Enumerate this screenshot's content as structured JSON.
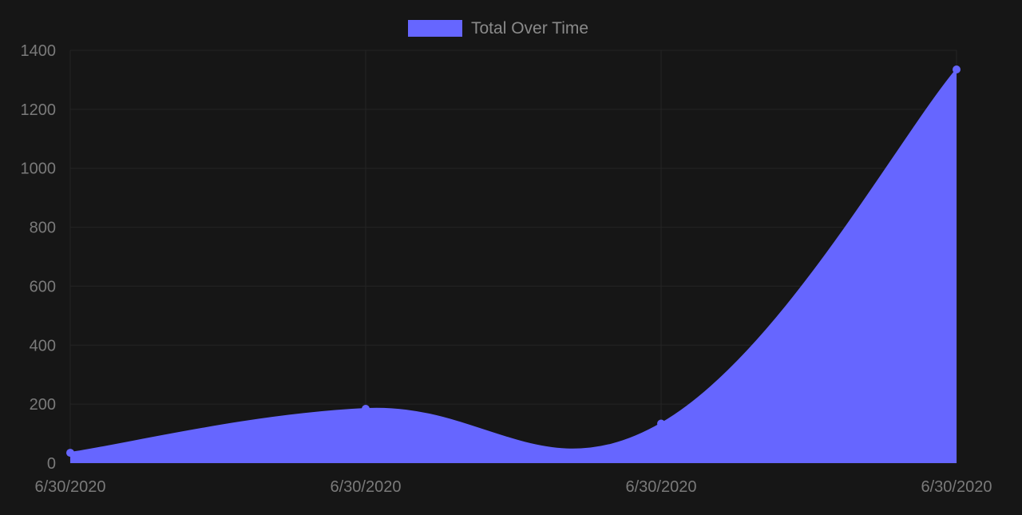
{
  "colors": {
    "background": "#161616",
    "series_fill": "#6666ff",
    "grid": "#242424",
    "tick_text": "#7a7a7a",
    "legend_text": "#8a8a8a"
  },
  "chart_data": {
    "type": "area",
    "title": "",
    "xlabel": "",
    "ylabel": "",
    "categories": [
      "6/30/2020",
      "6/30/2020",
      "6/30/2020",
      "6/30/2020"
    ],
    "series": [
      {
        "name": "Total Over Time",
        "values": [
          35,
          184,
          134,
          1335
        ]
      }
    ],
    "ylim": [
      0,
      1400
    ],
    "yticks": [
      "0",
      "200",
      "400",
      "600",
      "800",
      "1000",
      "1200",
      "1400"
    ],
    "grid": true,
    "legend_position": "top-center",
    "curve": "smooth"
  }
}
